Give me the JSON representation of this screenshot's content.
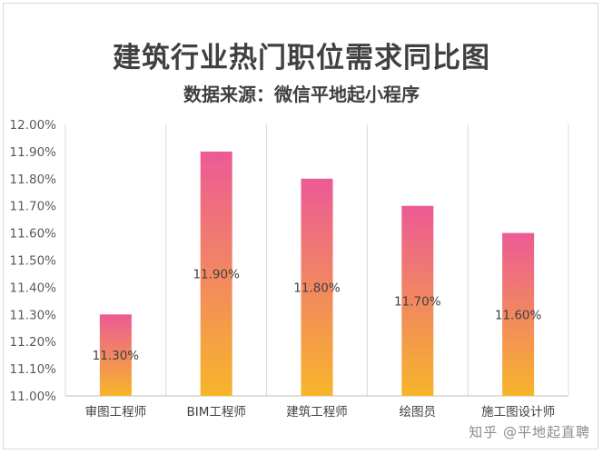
{
  "chart_data": {
    "type": "bar",
    "title": "建筑行业热门职位需求同比图",
    "subtitle": "数据来源：微信平地起小程序",
    "categories": [
      "审图工程师",
      "BIM工程师",
      "建筑工程师",
      "绘图员",
      "施工图设计师"
    ],
    "values": [
      11.3,
      11.9,
      11.8,
      11.7,
      11.6
    ],
    "data_labels": [
      "11.30%",
      "11.90%",
      "11.80%",
      "11.70%",
      "11.60%"
    ],
    "ylim": [
      11.0,
      12.0
    ],
    "yticks": [
      "11.00%",
      "11.10%",
      "11.20%",
      "11.30%",
      "11.40%",
      "11.50%",
      "11.60%",
      "11.70%",
      "11.80%",
      "11.90%",
      "12.00%"
    ],
    "grid": "vertical",
    "bar_gradient": {
      "top": "#ec5a96",
      "bottom": "#f7b52a"
    },
    "xlabel": "",
    "ylabel": ""
  },
  "watermark": "知乎 @平地起直聘"
}
